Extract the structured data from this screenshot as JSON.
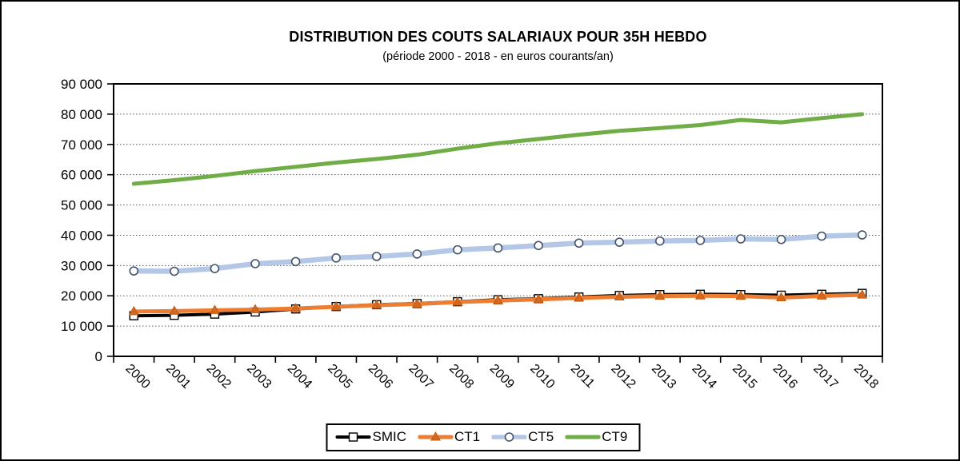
{
  "page": {
    "background": "#ffffff",
    "border_color": "#000000"
  },
  "chart_data": {
    "type": "line",
    "title": "DISTRIBUTION DES COUTS SALARIAUX POUR 35H HEBDO",
    "subtitle": "(période 2000 - 2018 - en euros courants/an)",
    "categories": [
      "2000",
      "2001",
      "2002",
      "2003",
      "2004",
      "2005",
      "2006",
      "2007",
      "2008",
      "2009",
      "2010",
      "2011",
      "2012",
      "2013",
      "2014",
      "2015",
      "2016",
      "2017",
      "2018"
    ],
    "x_axis": {
      "label": "",
      "tick_rotation_deg": 45
    },
    "y_axis": {
      "label": "",
      "min": 0,
      "max": 90000,
      "tick_step": 10000,
      "ticks": [
        0,
        10000,
        20000,
        30000,
        40000,
        50000,
        60000,
        70000,
        80000,
        90000
      ],
      "tick_labels": [
        "0",
        "10 000",
        "20 000",
        "30 000",
        "40 000",
        "50 000",
        "60 000",
        "70 000",
        "80 000",
        "90 000"
      ],
      "gridlines": "dotted",
      "gridline_color": "#595959"
    },
    "legend": {
      "position": "bottom-center",
      "border_color": "#000000"
    },
    "series": [
      {
        "name": "SMIC",
        "color": "#000000",
        "line_width": 4,
        "marker": "square",
        "marker_fill": "#ffffff",
        "marker_stroke": "#000000",
        "values": [
          13400,
          13550,
          13950,
          14650,
          15650,
          16450,
          17050,
          17450,
          18050,
          18700,
          19050,
          19600,
          20100,
          20400,
          20500,
          20400,
          20200,
          20500,
          20800
        ]
      },
      {
        "name": "CT1",
        "color": "#ED7D31",
        "line_width": 5,
        "marker": "triangle",
        "marker_fill": "#D2691E",
        "marker_stroke": "#C55A11",
        "values": [
          14800,
          14950,
          15200,
          15450,
          15800,
          16350,
          16900,
          17300,
          17900,
          18400,
          18800,
          19300,
          19650,
          19900,
          20000,
          19900,
          19400,
          19950,
          20300
        ]
      },
      {
        "name": "CT5",
        "color": "#B4C7E7",
        "line_width": 6.5,
        "marker": "circle",
        "marker_fill": "#ffffff",
        "marker_stroke": "#44546A",
        "values": [
          28200,
          28100,
          29000,
          30600,
          31300,
          32500,
          33000,
          33800,
          35200,
          35800,
          36600,
          37400,
          37700,
          38100,
          38300,
          38800,
          38600,
          39700,
          40100
        ]
      },
      {
        "name": "CT9",
        "color": "#70AD47",
        "line_width": 5,
        "marker": "none",
        "marker_fill": "",
        "marker_stroke": "",
        "values": [
          57000,
          58200,
          59600,
          61200,
          62600,
          64000,
          65200,
          66600,
          68600,
          70400,
          71800,
          73200,
          74500,
          75400,
          76400,
          78100,
          77300,
          78700,
          80000
        ]
      }
    ]
  }
}
